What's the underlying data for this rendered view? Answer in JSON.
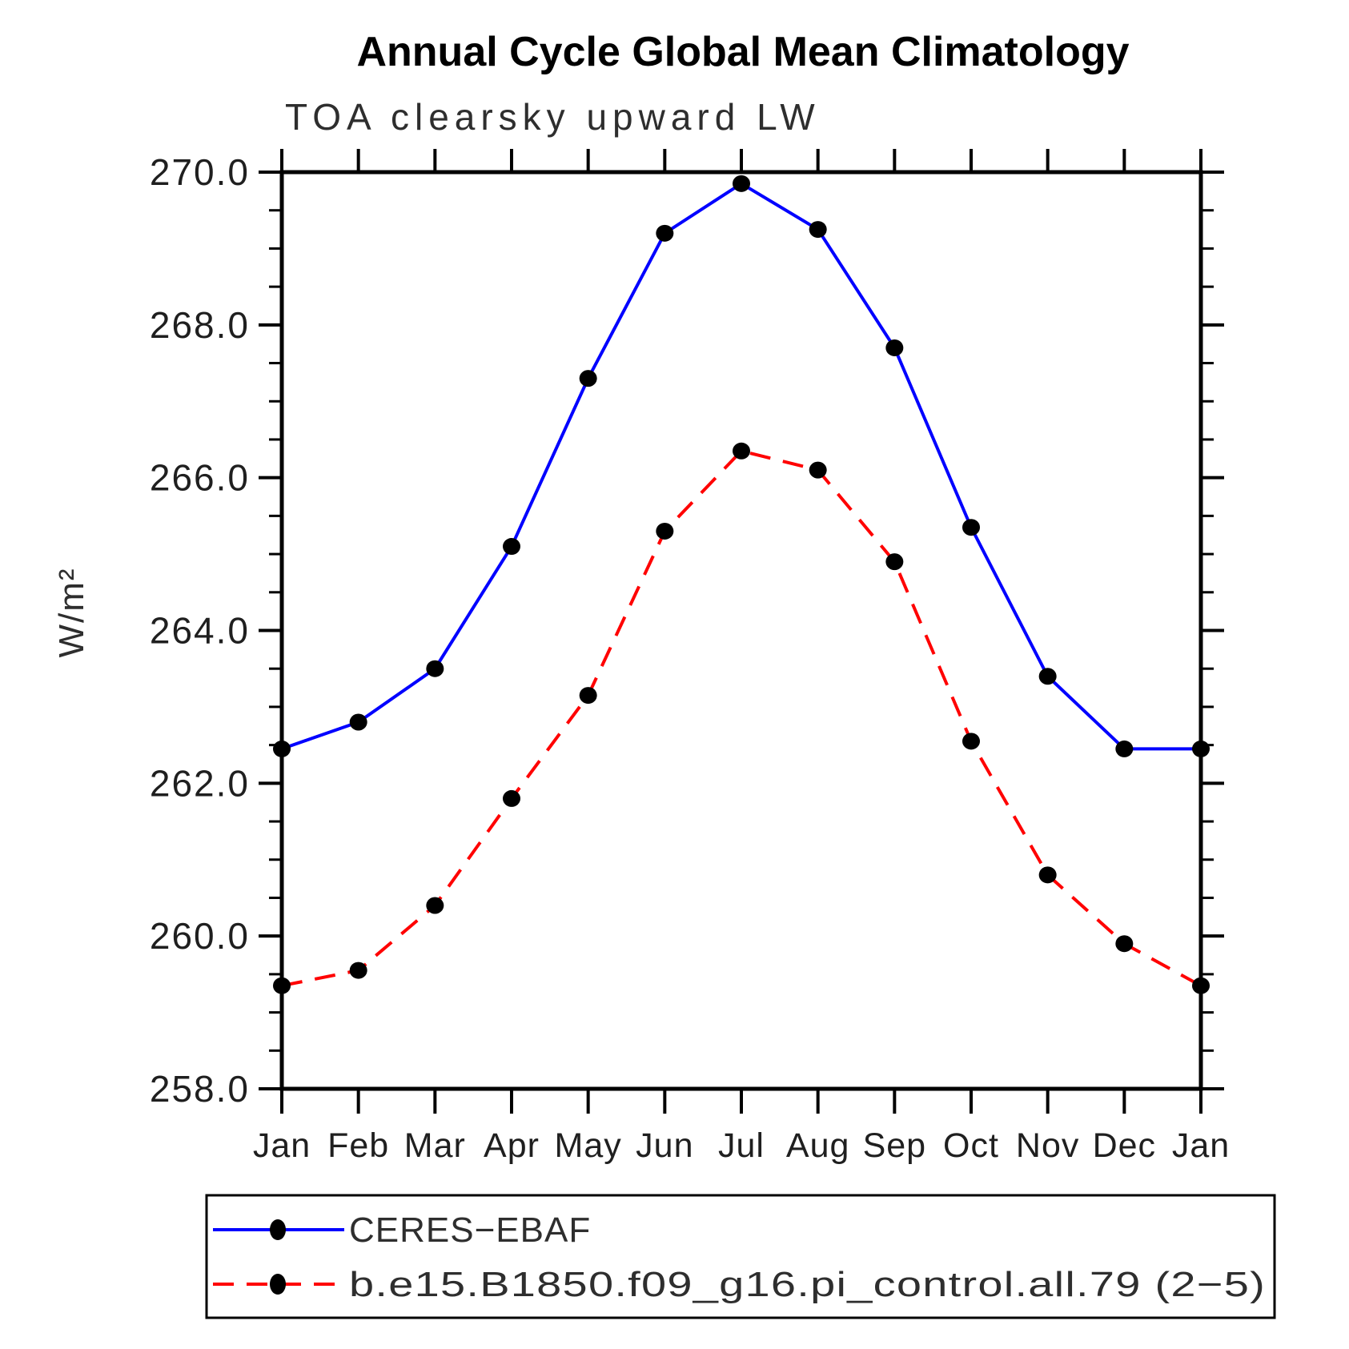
{
  "title": "Annual Cycle Global Mean Climatology",
  "subtitle": "TOA clearsky upward LW",
  "y_axis_label": "W/m²",
  "chart_data": {
    "type": "line",
    "categories": [
      "Jan",
      "Feb",
      "Mar",
      "Apr",
      "May",
      "Jun",
      "Jul",
      "Aug",
      "Sep",
      "Oct",
      "Nov",
      "Dec",
      "Jan"
    ],
    "xlabel": "",
    "ylabel": "W/m²",
    "ylim": [
      258.0,
      270.0
    ],
    "ytick_labels": [
      "270.0",
      "268.0",
      "266.0",
      "264.0",
      "262.0",
      "260.0",
      "258.0"
    ],
    "ytick_major_step": 2.0,
    "ytick_minor_step": 0.5,
    "grid": false,
    "legend_position": "bottom",
    "marker_color": "#000000",
    "axis_color": "#000000",
    "series": [
      {
        "name": "CERES−EBAF",
        "color": "#0000ff",
        "line_style": "solid",
        "values": [
          262.45,
          262.8,
          263.5,
          265.1,
          267.3,
          269.2,
          269.85,
          269.25,
          267.7,
          265.35,
          263.4,
          262.45,
          262.45
        ]
      },
      {
        "name": "b.e15.B1850.f09_g16.pi_control.all.79 (2−5)",
        "color": "#ff0000",
        "line_style": "dashed",
        "values": [
          259.35,
          259.55,
          260.4,
          261.8,
          263.15,
          265.3,
          266.35,
          266.1,
          264.9,
          262.55,
          260.8,
          259.9,
          259.35
        ]
      }
    ]
  }
}
